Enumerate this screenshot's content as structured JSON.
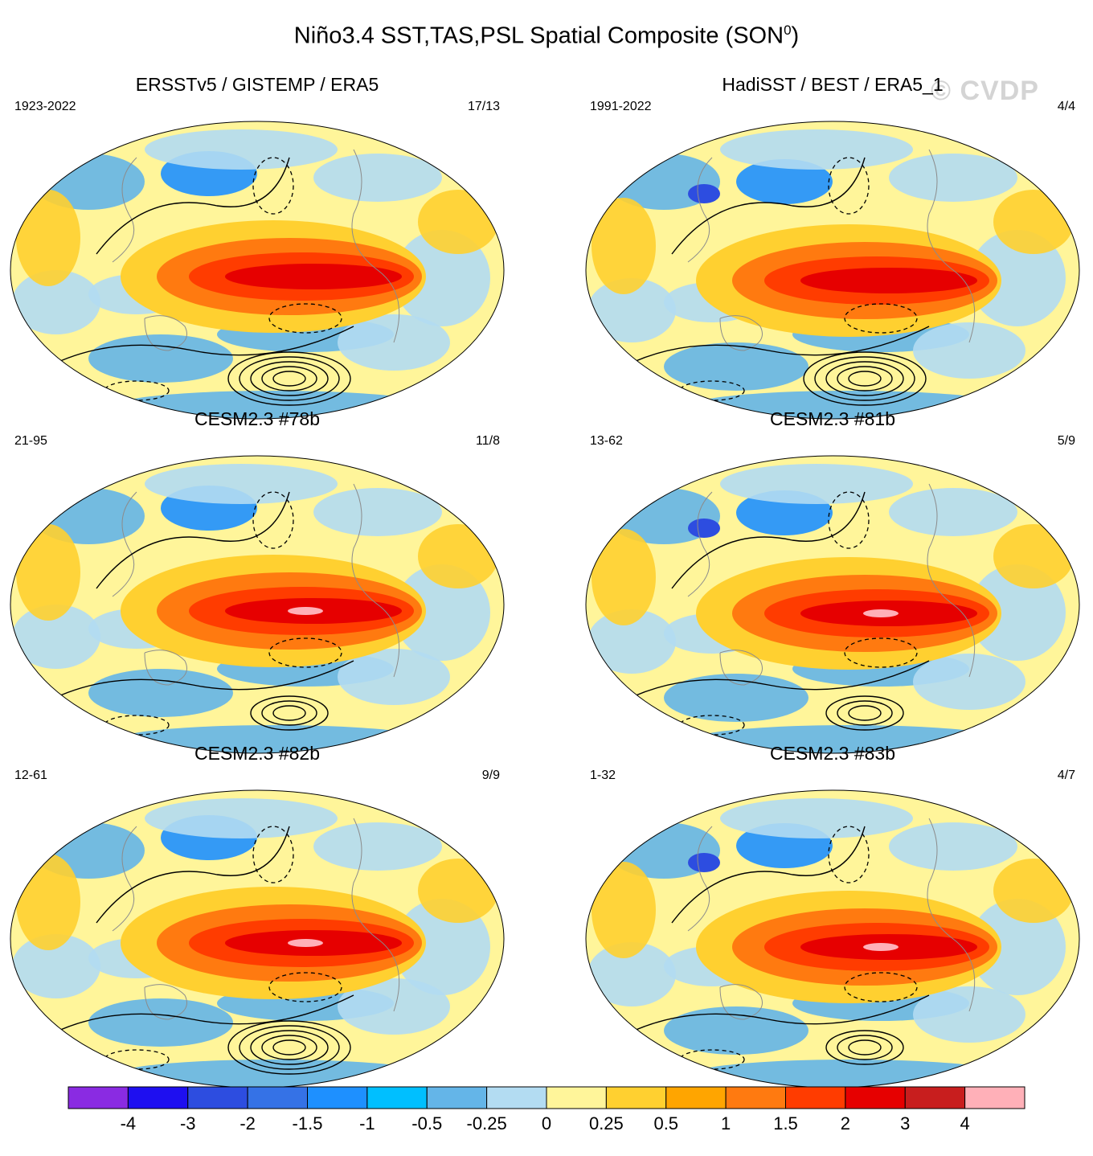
{
  "figure": {
    "title_main": "Niño3.4 SST,TAS,PSL Spatial Composite (SON",
    "title_sup": "0",
    "title_close": ")",
    "watermark": "© CVDP"
  },
  "panels": [
    {
      "title": "ERSSTv5 / GISTEMP / ERA5",
      "years": "1923-2022",
      "count": "17/13"
    },
    {
      "title": "HadiSST / BEST / ERA5_1",
      "years": "1991-2022",
      "count": "4/4"
    },
    {
      "title": "CESM2.3 #78b",
      "years": "21-95",
      "count": "11/8"
    },
    {
      "title": "CESM2.3 #81b",
      "years": "13-62",
      "count": "5/9"
    },
    {
      "title": "CESM2.3 #82b",
      "years": "12-61",
      "count": "9/9"
    },
    {
      "title": "CESM2.3 #83b",
      "years": "1-32",
      "count": "4/7"
    }
  ],
  "colorbar": {
    "colors": [
      "#8a2be2",
      "#1e0ff0",
      "#2d4de0",
      "#3572e6",
      "#1e90ff",
      "#00bfff",
      "#64b5e8",
      "#b3dcf2",
      "#fff59a",
      "#ffd030",
      "#ffa500",
      "#ff7a10",
      "#ff3c00",
      "#e60000",
      "#c81e1e",
      "#ffb0b8"
    ],
    "labels": [
      "-4",
      "-3",
      "-2",
      "-1.5",
      "-1",
      "-0.5",
      "-0.25",
      "0",
      "0.25",
      "0.5",
      "1",
      "1.5",
      "2",
      "3",
      "4"
    ]
  },
  "palette": {
    "warm_core": "#e60000",
    "warm": "#ff7a10",
    "warm_light": "#ffd030",
    "neutral_warm": "#fff59a",
    "neutral_cool": "#b3dcf2",
    "cool": "#64b5e8",
    "cool_strong": "#1e90ff",
    "peak": "#ffb0b8"
  }
}
